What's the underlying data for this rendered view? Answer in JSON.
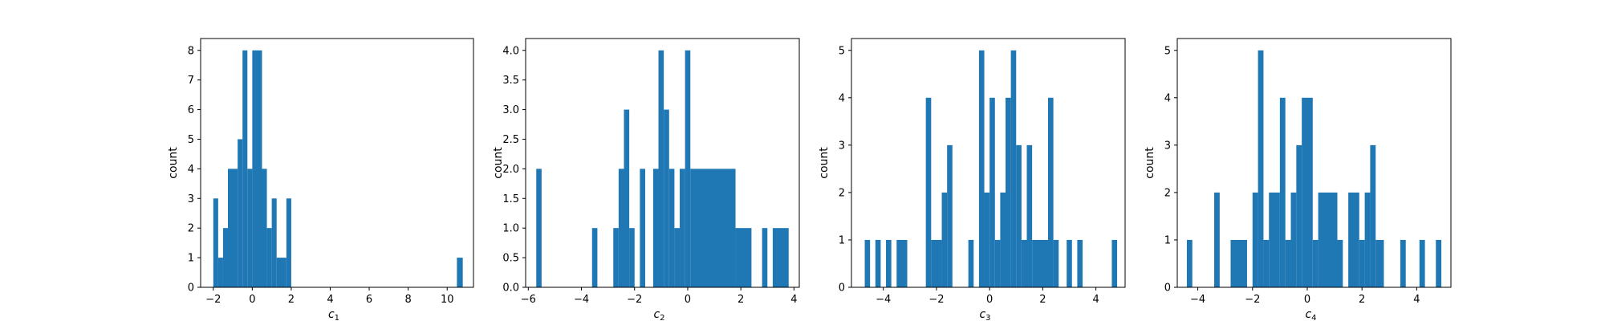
{
  "figure": {
    "bar_color": "#1f77b4"
  },
  "chart_data": [
    {
      "type": "bar",
      "xlabel": "c",
      "xlabel_sub": "1",
      "ylabel": "count",
      "xlim": [
        -2.65,
        11.35
      ],
      "ylim": [
        0,
        8.4
      ],
      "xticks": [
        -2,
        0,
        2,
        4,
        6,
        8,
        10
      ],
      "xtick_labels": [
        "−2",
        "0",
        "2",
        "4",
        "6",
        "8",
        "10"
      ],
      "yticks": [
        0,
        1,
        2,
        3,
        4,
        5,
        6,
        7,
        8
      ],
      "ytick_labels": [
        "0",
        "1",
        "2",
        "3",
        "4",
        "5",
        "6",
        "7",
        "8"
      ],
      "bins": [
        [
          -2.0,
          -1.75,
          3
        ],
        [
          -1.75,
          -1.5,
          1
        ],
        [
          -1.5,
          -1.25,
          2
        ],
        [
          -1.25,
          -0.75,
          4
        ],
        [
          -0.75,
          -0.5,
          5
        ],
        [
          -0.5,
          -0.25,
          8
        ],
        [
          -0.25,
          0.0,
          4
        ],
        [
          0.0,
          0.5,
          8
        ],
        [
          0.5,
          0.75,
          4
        ],
        [
          0.75,
          1.0,
          2
        ],
        [
          1.0,
          1.25,
          3
        ],
        [
          1.25,
          1.75,
          1
        ],
        [
          1.75,
          2.0,
          3
        ],
        [
          10.5,
          10.8,
          1
        ]
      ]
    },
    {
      "type": "bar",
      "xlabel": "c",
      "xlabel_sub": "2",
      "ylabel": "count",
      "xlim": [
        -6.1,
        4.2
      ],
      "ylim": [
        0,
        4.2
      ],
      "xticks": [
        -6,
        -4,
        -2,
        0,
        2,
        4
      ],
      "xtick_labels": [
        "−6",
        "−4",
        "−2",
        "0",
        "2",
        "4"
      ],
      "yticks": [
        0,
        0.5,
        1.0,
        1.5,
        2.0,
        2.5,
        3.0,
        3.5,
        4.0
      ],
      "ytick_labels": [
        "0.0",
        "0.5",
        "1.0",
        "1.5",
        "2.0",
        "2.5",
        "3.0",
        "3.5",
        "4.0"
      ],
      "bins": [
        [
          -5.7,
          -5.5,
          2
        ],
        [
          -3.6,
          -3.4,
          1
        ],
        [
          -2.8,
          -2.6,
          1
        ],
        [
          -2.6,
          -2.4,
          2
        ],
        [
          -2.4,
          -2.2,
          3
        ],
        [
          -2.2,
          -2.0,
          1
        ],
        [
          -1.8,
          -1.6,
          2
        ],
        [
          -1.3,
          -1.1,
          2
        ],
        [
          -1.1,
          -0.9,
          4
        ],
        [
          -0.9,
          -0.7,
          3
        ],
        [
          -0.7,
          -0.5,
          2
        ],
        [
          -0.5,
          -0.3,
          1
        ],
        [
          -0.3,
          -0.1,
          2
        ],
        [
          -0.1,
          0.1,
          4
        ],
        [
          0.1,
          1.8,
          2
        ],
        [
          1.8,
          2.4,
          1
        ],
        [
          2.8,
          3.0,
          1
        ],
        [
          3.2,
          3.8,
          1
        ]
      ]
    },
    {
      "type": "bar",
      "xlabel": "c",
      "xlabel_sub": "3",
      "ylabel": "count",
      "xlim": [
        -5.2,
        5.1
      ],
      "ylim": [
        0,
        5.25
      ],
      "xticks": [
        -4,
        -2,
        0,
        2,
        4
      ],
      "xtick_labels": [
        "−4",
        "−2",
        "0",
        "2",
        "4"
      ],
      "yticks": [
        0,
        1,
        2,
        3,
        4,
        5
      ],
      "ytick_labels": [
        "0",
        "1",
        "2",
        "3",
        "4",
        "5"
      ],
      "bins": [
        [
          -4.7,
          -4.5,
          1
        ],
        [
          -4.3,
          -4.1,
          1
        ],
        [
          -3.9,
          -3.7,
          1
        ],
        [
          -3.5,
          -3.1,
          1
        ],
        [
          -2.4,
          -2.2,
          4
        ],
        [
          -2.2,
          -1.8,
          1
        ],
        [
          -1.8,
          -1.6,
          2
        ],
        [
          -1.6,
          -1.4,
          3
        ],
        [
          -0.8,
          -0.6,
          1
        ],
        [
          -0.4,
          -0.2,
          5
        ],
        [
          -0.2,
          0.0,
          2
        ],
        [
          0.0,
          0.2,
          4
        ],
        [
          0.2,
          0.4,
          1
        ],
        [
          0.4,
          0.6,
          2
        ],
        [
          0.6,
          0.8,
          4
        ],
        [
          0.8,
          1.0,
          5
        ],
        [
          1.0,
          1.2,
          3
        ],
        [
          1.2,
          1.4,
          1
        ],
        [
          1.4,
          1.6,
          3
        ],
        [
          1.6,
          2.2,
          1
        ],
        [
          2.2,
          2.4,
          4
        ],
        [
          2.4,
          2.6,
          1
        ],
        [
          2.9,
          3.1,
          1
        ],
        [
          3.3,
          3.5,
          1
        ],
        [
          4.6,
          4.8,
          1
        ]
      ]
    },
    {
      "type": "bar",
      "xlabel": "c",
      "xlabel_sub": "4",
      "ylabel": "count",
      "xlim": [
        -4.75,
        5.25
      ],
      "ylim": [
        0,
        5.25
      ],
      "xticks": [
        -4,
        -2,
        0,
        2,
        4
      ],
      "xtick_labels": [
        "−4",
        "−2",
        "0",
        "2",
        "4"
      ],
      "yticks": [
        0,
        1,
        2,
        3,
        4,
        5
      ],
      "ytick_labels": [
        "0",
        "1",
        "2",
        "3",
        "4",
        "5"
      ],
      "bins": [
        [
          -4.4,
          -4.2,
          1
        ],
        [
          -3.4,
          -3.2,
          2
        ],
        [
          -2.8,
          -2.2,
          1
        ],
        [
          -2.0,
          -1.8,
          2
        ],
        [
          -1.8,
          -1.6,
          5
        ],
        [
          -1.6,
          -1.4,
          1
        ],
        [
          -1.4,
          -1.0,
          2
        ],
        [
          -1.0,
          -0.8,
          4
        ],
        [
          -0.8,
          -0.6,
          1
        ],
        [
          -0.6,
          -0.4,
          2
        ],
        [
          -0.4,
          -0.2,
          3
        ],
        [
          -0.2,
          0.2,
          4
        ],
        [
          0.2,
          0.4,
          1
        ],
        [
          0.4,
          1.1,
          2
        ],
        [
          1.1,
          1.3,
          1
        ],
        [
          1.5,
          1.9,
          2
        ],
        [
          1.9,
          2.1,
          1
        ],
        [
          2.1,
          2.3,
          2
        ],
        [
          2.3,
          2.5,
          3
        ],
        [
          2.5,
          2.8,
          1
        ],
        [
          3.4,
          3.6,
          1
        ],
        [
          4.1,
          4.3,
          1
        ],
        [
          4.7,
          4.9,
          1
        ]
      ]
    }
  ]
}
